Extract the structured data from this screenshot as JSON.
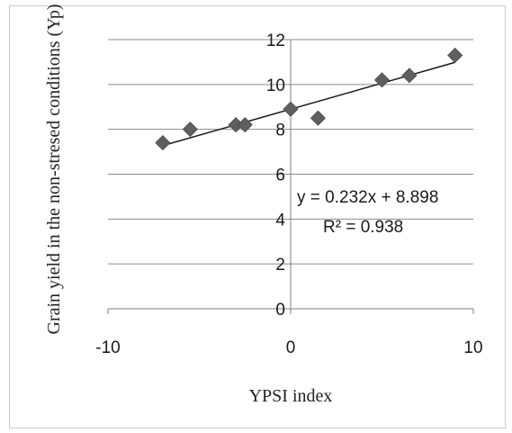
{
  "chart_data": {
    "type": "scatter",
    "xlabel": "YPSI index",
    "ylabel": "Grain yield in the non-stresed conditions (Yp)",
    "xlim": [
      -10,
      10
    ],
    "ylim": [
      0,
      12
    ],
    "x_ticks": [
      "-10",
      "0",
      "10"
    ],
    "y_ticks": [
      "0",
      "2",
      "4",
      "6",
      "8",
      "10",
      "12"
    ],
    "grid": "horizontal",
    "series": [
      {
        "marker": "diamond",
        "points": [
          {
            "x": -7.0,
            "y": 7.4
          },
          {
            "x": -5.5,
            "y": 8.0
          },
          {
            "x": -3.0,
            "y": 8.2
          },
          {
            "x": -2.5,
            "y": 8.2
          },
          {
            "x": 0.0,
            "y": 8.9
          },
          {
            "x": 1.5,
            "y": 8.5
          },
          {
            "x": 5.0,
            "y": 10.2
          },
          {
            "x": 6.5,
            "y": 10.4
          },
          {
            "x": 9.0,
            "y": 11.3
          }
        ]
      }
    ],
    "trendline": {
      "slope": 0.232,
      "intercept": 8.898,
      "x_range": [
        -7.0,
        9.0
      ],
      "equation_label": "y = 0.232x + 8.898",
      "r2_label": "R² = 0.938"
    },
    "colors": {
      "marker": "#5f5f5f",
      "trendline": "#1a1a1a",
      "grid": "#8c8c8c",
      "axis": "#7f7f7f"
    }
  }
}
